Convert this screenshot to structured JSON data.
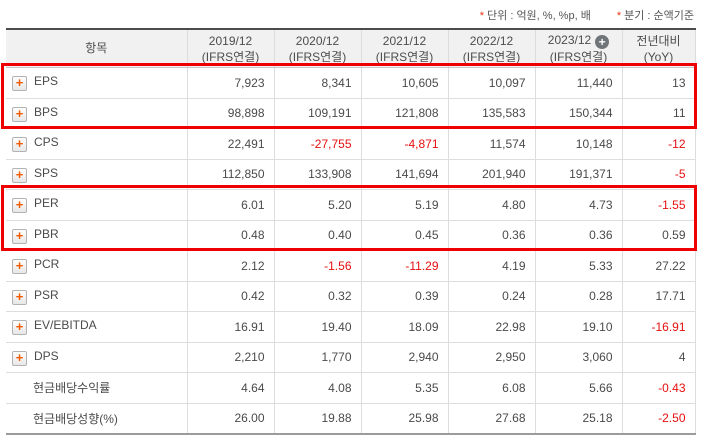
{
  "notes": {
    "marker": "*",
    "unit_label": "단위 : 억원, %, %p, 배",
    "basis_label": "분기 : 순액기준"
  },
  "icons": {
    "row_expand": "+",
    "column_add": "+"
  },
  "colors": {
    "negative_value": "#e60f0f",
    "highlight_border": "#ee0000",
    "expand_plus_orange": "#f25a00",
    "header_background": "#f1f1f1"
  },
  "table": {
    "item_header": "항목",
    "columns": [
      {
        "period": "2019/12",
        "standard": "(IFRS연결)"
      },
      {
        "period": "2020/12",
        "standard": "(IFRS연결)"
      },
      {
        "period": "2021/12",
        "standard": "(IFRS연결)"
      },
      {
        "period": "2022/12",
        "standard": "(IFRS연결)"
      },
      {
        "period": "2023/12",
        "standard": "(IFRS연결)",
        "has_add_icon": true
      }
    ],
    "yoy_header": {
      "line1": "전년대비",
      "line2": "(YoY)"
    },
    "rows": [
      {
        "label": "EPS",
        "has_plus": true,
        "values": [
          "7,923",
          "8,341",
          "10,605",
          "10,097",
          "11,440"
        ],
        "negatives": [
          false,
          false,
          false,
          false,
          false
        ],
        "yoy": "13",
        "yoy_negative": false
      },
      {
        "label": "BPS",
        "has_plus": true,
        "values": [
          "98,898",
          "109,191",
          "121,808",
          "135,583",
          "150,344"
        ],
        "negatives": [
          false,
          false,
          false,
          false,
          false
        ],
        "yoy": "11",
        "yoy_negative": false
      },
      {
        "label": "CPS",
        "has_plus": true,
        "values": [
          "22,491",
          "-27,755",
          "-4,871",
          "11,574",
          "10,148"
        ],
        "negatives": [
          false,
          true,
          true,
          false,
          false
        ],
        "yoy": "-12",
        "yoy_negative": true
      },
      {
        "label": "SPS",
        "has_plus": true,
        "values": [
          "112,850",
          "133,908",
          "141,694",
          "201,940",
          "191,371"
        ],
        "negatives": [
          false,
          false,
          false,
          false,
          false
        ],
        "yoy": "-5",
        "yoy_negative": true
      },
      {
        "label": "PER",
        "has_plus": true,
        "values": [
          "6.01",
          "5.20",
          "5.19",
          "4.80",
          "4.73"
        ],
        "negatives": [
          false,
          false,
          false,
          false,
          false
        ],
        "yoy": "-1.55",
        "yoy_negative": true
      },
      {
        "label": "PBR",
        "has_plus": true,
        "values": [
          "0.48",
          "0.40",
          "0.45",
          "0.36",
          "0.36"
        ],
        "negatives": [
          false,
          false,
          false,
          false,
          false
        ],
        "yoy": "0.59",
        "yoy_negative": false
      },
      {
        "label": "PCR",
        "has_plus": true,
        "values": [
          "2.12",
          "-1.56",
          "-11.29",
          "4.19",
          "5.33"
        ],
        "negatives": [
          false,
          true,
          true,
          false,
          false
        ],
        "yoy": "27.22",
        "yoy_negative": false
      },
      {
        "label": "PSR",
        "has_plus": true,
        "values": [
          "0.42",
          "0.32",
          "0.39",
          "0.24",
          "0.28"
        ],
        "negatives": [
          false,
          false,
          false,
          false,
          false
        ],
        "yoy": "17.71",
        "yoy_negative": false
      },
      {
        "label": "EV/EBITDA",
        "has_plus": true,
        "values": [
          "16.91",
          "19.40",
          "18.09",
          "22.98",
          "19.10"
        ],
        "negatives": [
          false,
          false,
          false,
          false,
          false
        ],
        "yoy": "-16.91",
        "yoy_negative": true
      },
      {
        "label": "DPS",
        "has_plus": true,
        "values": [
          "2,210",
          "1,770",
          "2,940",
          "2,950",
          "3,060"
        ],
        "negatives": [
          false,
          false,
          false,
          false,
          false
        ],
        "yoy": "4",
        "yoy_negative": false
      },
      {
        "label": "현금배당수익률",
        "has_plus": false,
        "values": [
          "4.64",
          "4.08",
          "5.35",
          "6.08",
          "5.66"
        ],
        "negatives": [
          false,
          false,
          false,
          false,
          false
        ],
        "yoy": "-0.43",
        "yoy_negative": true
      },
      {
        "label": "현금배당성향(%)",
        "has_plus": false,
        "values": [
          "26.00",
          "19.88",
          "25.98",
          "27.68",
          "25.18"
        ],
        "negatives": [
          false,
          false,
          false,
          false,
          false
        ],
        "yoy": "-2.50",
        "yoy_negative": true
      }
    ],
    "highlighted_row_groups": [
      {
        "rows": [
          "EPS",
          "BPS"
        ]
      },
      {
        "rows": [
          "PER",
          "PBR"
        ]
      }
    ]
  }
}
